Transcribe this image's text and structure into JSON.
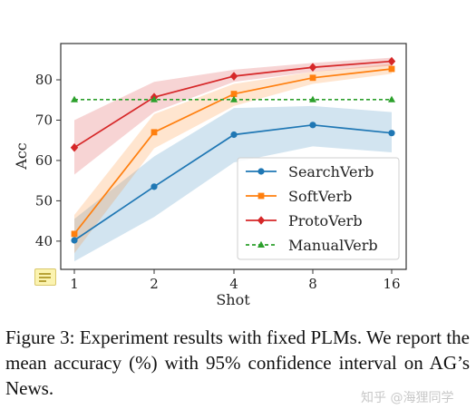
{
  "chart_data": {
    "type": "line",
    "x": [
      1,
      2,
      4,
      8,
      16
    ],
    "x_tick_labels": [
      "1",
      "2",
      "4",
      "8",
      "16"
    ],
    "xscale": "log2",
    "xlabel": "Shot",
    "ylabel": "Acc",
    "ylim": [
      33,
      89
    ],
    "y_ticks": [
      40,
      50,
      60,
      70,
      80
    ],
    "grid": false,
    "legend_position": "bottom-right",
    "series": [
      {
        "name": "SearchVerb",
        "color": "#1f77b4",
        "marker": "circle",
        "line_style": "solid",
        "values": [
          40.2,
          53.5,
          66.4,
          68.8,
          66.8
        ],
        "ci_lower": [
          35.0,
          46.0,
          59.5,
          63.5,
          62.0
        ],
        "ci_upper": [
          45.5,
          61.0,
          73.0,
          73.5,
          72.0
        ]
      },
      {
        "name": "SoftVerb",
        "color": "#ff7f0e",
        "marker": "square",
        "line_style": "solid",
        "values": [
          41.8,
          67.0,
          76.5,
          80.5,
          82.7
        ],
        "ci_lower": [
          37.0,
          63.0,
          73.5,
          79.0,
          81.5
        ],
        "ci_upper": [
          46.5,
          71.5,
          79.0,
          82.0,
          84.0
        ]
      },
      {
        "name": "ProtoVerb",
        "color": "#d62728",
        "marker": "diamond",
        "line_style": "solid",
        "values": [
          63.2,
          75.7,
          80.9,
          83.1,
          84.6
        ],
        "ci_lower": [
          56.5,
          72.0,
          79.5,
          82.0,
          83.5
        ],
        "ci_upper": [
          70.0,
          79.5,
          82.5,
          84.2,
          85.5
        ]
      },
      {
        "name": "ManualVerb",
        "color": "#2ca02c",
        "marker": "triangle",
        "line_style": "dashed",
        "values": [
          75.1,
          75.1,
          75.1,
          75.1,
          75.1
        ]
      }
    ]
  },
  "caption": "Figure 3: Experiment results with fixed PLMs. We report the mean accuracy (%) with 95% confidence interval on AG’s News.",
  "watermark": "知乎 @海狸同学",
  "icons": {
    "overlay": "note-icon"
  }
}
